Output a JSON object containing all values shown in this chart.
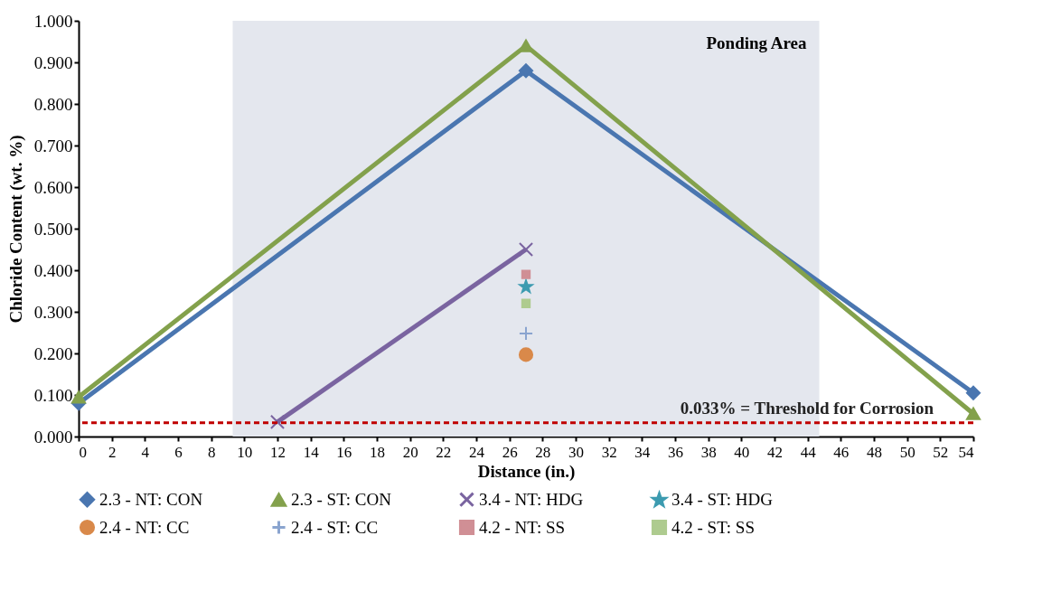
{
  "chart_data": {
    "type": "line",
    "xlabel": "Distance (in.)",
    "ylabel": "Chloride Content (wt. %)",
    "xlim": [
      0,
      54
    ],
    "xticks": [
      0,
      2,
      4,
      6,
      8,
      10,
      12,
      14,
      16,
      18,
      20,
      22,
      24,
      26,
      28,
      30,
      32,
      34,
      36,
      38,
      40,
      42,
      44,
      46,
      48,
      50,
      52,
      54
    ],
    "ylim": [
      0,
      1
    ],
    "yticks": [
      {
        "value": 0,
        "label": "0.000"
      },
      {
        "value": 0.1,
        "label": "0.100"
      },
      {
        "value": 0.2,
        "label": "0.200"
      },
      {
        "value": 0.3,
        "label": "0.300"
      },
      {
        "value": 0.4,
        "label": "0.400"
      },
      {
        "value": 0.5,
        "label": "0.500"
      },
      {
        "value": 0.6,
        "label": "0.600"
      },
      {
        "value": 0.7,
        "label": "0.700"
      },
      {
        "value": 0.8,
        "label": "0.800"
      },
      {
        "value": 0.9,
        "label": "0.900"
      },
      {
        "value": 1,
        "label": "1.000"
      }
    ],
    "grid": false,
    "legend": "bottom",
    "series": [
      {
        "name": "2.3 - NT: CON",
        "color": "#4a76b0",
        "marker": "diamond",
        "x": [
          0,
          27,
          54
        ],
        "values": [
          0.08,
          0.88,
          0.105
        ]
      },
      {
        "name": "2.3 - ST: CON",
        "color": "#83a14c",
        "marker": "triangle",
        "x": [
          0,
          27,
          54
        ],
        "values": [
          0.095,
          0.94,
          0.055
        ]
      },
      {
        "name": "3.4 - NT: HDG",
        "color": "#7a64a0",
        "marker": "cross",
        "x": [
          12,
          27
        ],
        "values": [
          0.035,
          0.45
        ]
      },
      {
        "name": "3.4 - ST: HDG",
        "color": "#3c9bb0",
        "marker": "star",
        "x": [
          27
        ],
        "values": [
          0.36
        ]
      },
      {
        "name": "2.4 - NT: CC",
        "color": "#d9894a",
        "marker": "circle",
        "x": [
          27
        ],
        "values": [
          0.197
        ]
      },
      {
        "name": "2.4 - ST: CC",
        "color": "#8aa4cf",
        "marker": "plus",
        "x": [
          27
        ],
        "values": [
          0.248
        ]
      },
      {
        "name": "4.2 - NT: SS",
        "color": "#d08f95",
        "marker": "square",
        "x": [
          27
        ],
        "values": [
          0.39
        ]
      },
      {
        "name": "4.2 - ST: SS",
        "color": "#aecb8f",
        "marker": "square",
        "x": [
          27
        ],
        "values": [
          0.32
        ]
      }
    ],
    "bands": [
      {
        "axis": "x",
        "from": 9.3,
        "to": 44.7,
        "label": "Ponding Area",
        "color": "#e4e7ee"
      }
    ],
    "ref_lines": [
      {
        "axis": "y",
        "value": 0.033,
        "label": "0.033% = Threshold for Corrosion",
        "color": "#c00000",
        "line_style": "dashed"
      }
    ]
  }
}
